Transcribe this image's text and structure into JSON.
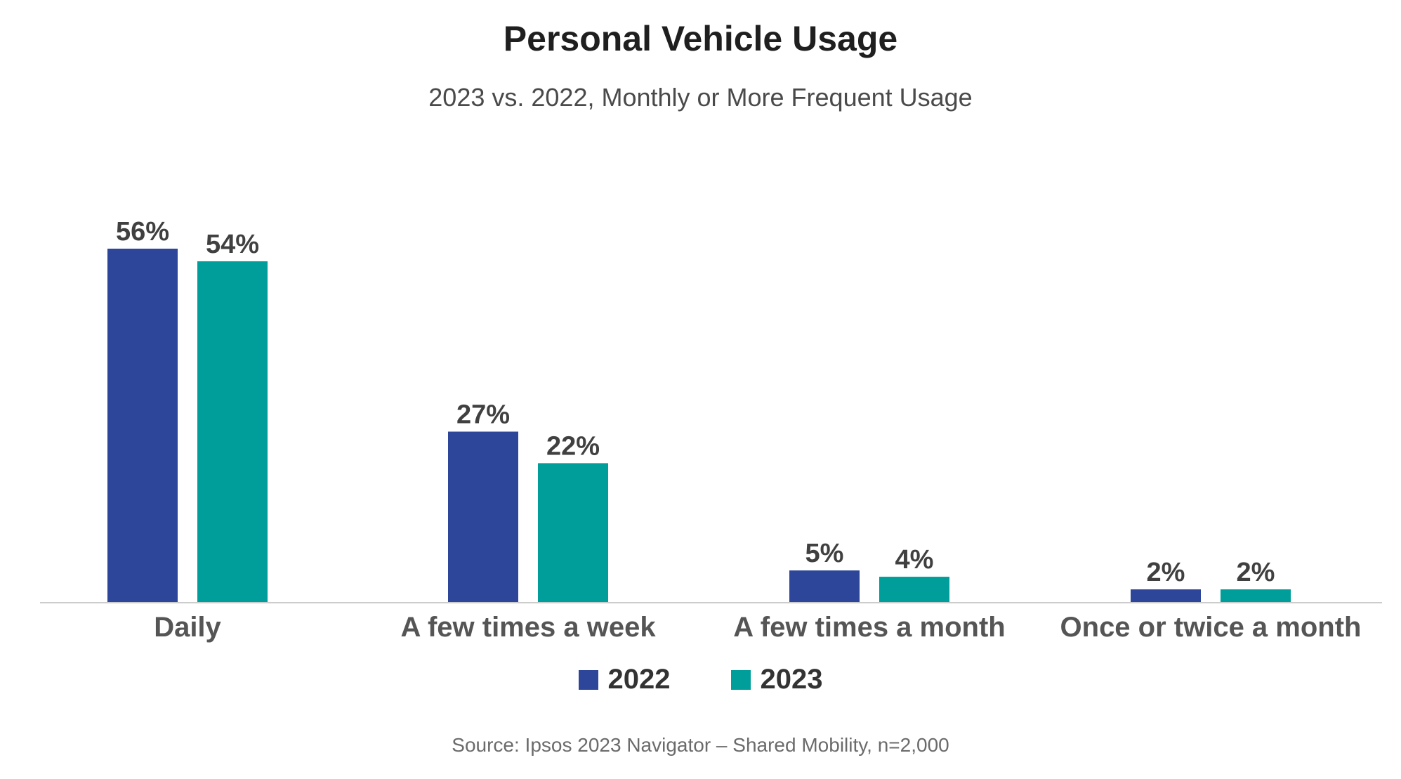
{
  "title": "Personal Vehicle Usage",
  "subtitle": "2023 vs. 2022, Monthly or More Frequent Usage",
  "source": "Source: Ipsos 2023 Navigator – Shared Mobility, n=2,000",
  "colors": {
    "series_2022": "#2E4699",
    "series_2023": "#009E9A",
    "axis": "#cccccc",
    "label": "#404040",
    "category": "#555555"
  },
  "chart_data": {
    "type": "bar",
    "categories": [
      "Daily",
      "A few times a week",
      "A few times a month",
      "Once or twice a month"
    ],
    "series": [
      {
        "name": "2022",
        "values": [
          56,
          27,
          5,
          2
        ],
        "labels": [
          "56%",
          "27%",
          "5%",
          "2%"
        ]
      },
      {
        "name": "2023",
        "values": [
          54,
          22,
          4,
          2
        ],
        "labels": [
          "54%",
          "22%",
          "4%",
          "2%"
        ]
      }
    ],
    "ylim": [
      0,
      56
    ],
    "grid": false,
    "legend_position": "bottom-center",
    "xlabel": "",
    "ylabel": ""
  }
}
